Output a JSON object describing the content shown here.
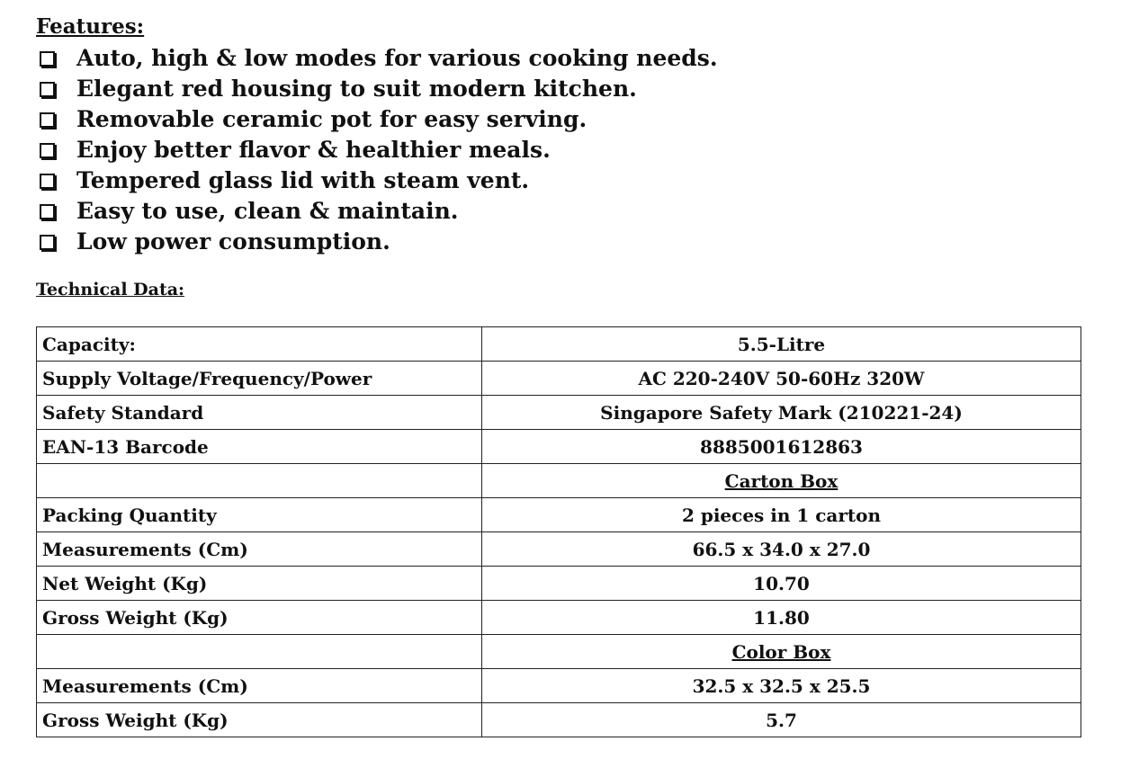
{
  "features": {
    "title": "Features:",
    "items": [
      "Auto, high & low modes for various cooking needs.",
      "Elegant red housing to suit modern kitchen.",
      "Removable ceramic pot for easy serving.",
      "Enjoy better flavor & healthier meals.",
      "Tempered glass lid with steam vent.",
      "Easy to use, clean & maintain.",
      "Low power consumption."
    ]
  },
  "technical_data": {
    "title": "Technical Data:",
    "rows": [
      [
        "Capacity:",
        "5.5-Litre"
      ],
      [
        "Supply Voltage/Frequency/Power",
        "AC 220-240V 50-60Hz 320W"
      ],
      [
        "Safety Standard",
        "Singapore Safety Mark (210221-24)"
      ],
      [
        "EAN-13 Barcode",
        "8885001612863"
      ],
      [
        null,
        "Carton Box"
      ],
      [
        "Packing Quantity",
        "2 pieces in 1 carton"
      ],
      [
        "Measurements (Cm)",
        "66.5 x 34.0 x 27.0"
      ],
      [
        "Net Weight (Kg)",
        "10.70"
      ],
      [
        "Gross Weight (Kg)",
        "11.80"
      ],
      [
        null,
        "Color Box"
      ],
      [
        "Measurements (Cm)",
        "32.5 x 32.5 x 25.5"
      ],
      [
        "Gross Weight (Kg)",
        "5.7"
      ]
    ]
  }
}
